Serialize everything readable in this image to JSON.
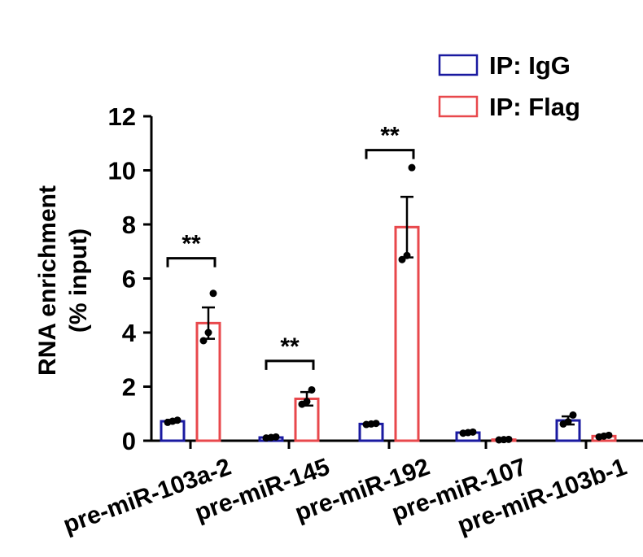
{
  "chart_data": {
    "type": "bar",
    "title": "",
    "ylabel_line1": "RNA enrichment",
    "ylabel_line2": "(% input)",
    "xlabel": "",
    "ylim": [
      0,
      12
    ],
    "yticks": [
      "0",
      "2",
      "4",
      "6",
      "8",
      "10",
      "12"
    ],
    "ytick_values": [
      0,
      2,
      4,
      6,
      8,
      10,
      12
    ],
    "categories": [
      "pre-miR-103a-2",
      "pre-miR-145",
      "pre-miR-192",
      "pre-miR-107",
      "pre-miR-103b-1"
    ],
    "series": [
      {
        "name": "IP: IgG",
        "color": "#1a1aa0",
        "values": [
          0.72,
          0.12,
          0.62,
          0.3,
          0.75
        ],
        "errors": [
          0.05,
          0.03,
          0.03,
          0.03,
          0.15
        ],
        "points": [
          [
            0.68,
            0.72,
            0.76
          ],
          [
            0.1,
            0.12,
            0.14
          ],
          [
            0.6,
            0.62,
            0.64
          ],
          [
            0.28,
            0.3,
            0.32
          ],
          [
            0.62,
            0.7,
            0.95
          ]
        ]
      },
      {
        "name": "IP: Flag",
        "color": "#e8484c",
        "values": [
          4.35,
          1.55,
          7.9,
          0.04,
          0.17
        ],
        "errors": [
          0.58,
          0.25,
          1.12,
          0.01,
          0.03
        ],
        "points": [
          [
            3.7,
            4.0,
            5.45
          ],
          [
            1.35,
            1.45,
            1.88
          ],
          [
            6.7,
            6.85,
            10.1
          ],
          [
            0.03,
            0.04,
            0.05
          ],
          [
            0.14,
            0.17,
            0.2
          ]
        ]
      }
    ],
    "significance": [
      {
        "category_index": 0,
        "label": "**",
        "y": 6.75
      },
      {
        "category_index": 1,
        "label": "**",
        "y": 2.95
      },
      {
        "category_index": 2,
        "label": "**",
        "y": 10.75
      }
    ],
    "legend_position": "top-right",
    "grid": false
  }
}
